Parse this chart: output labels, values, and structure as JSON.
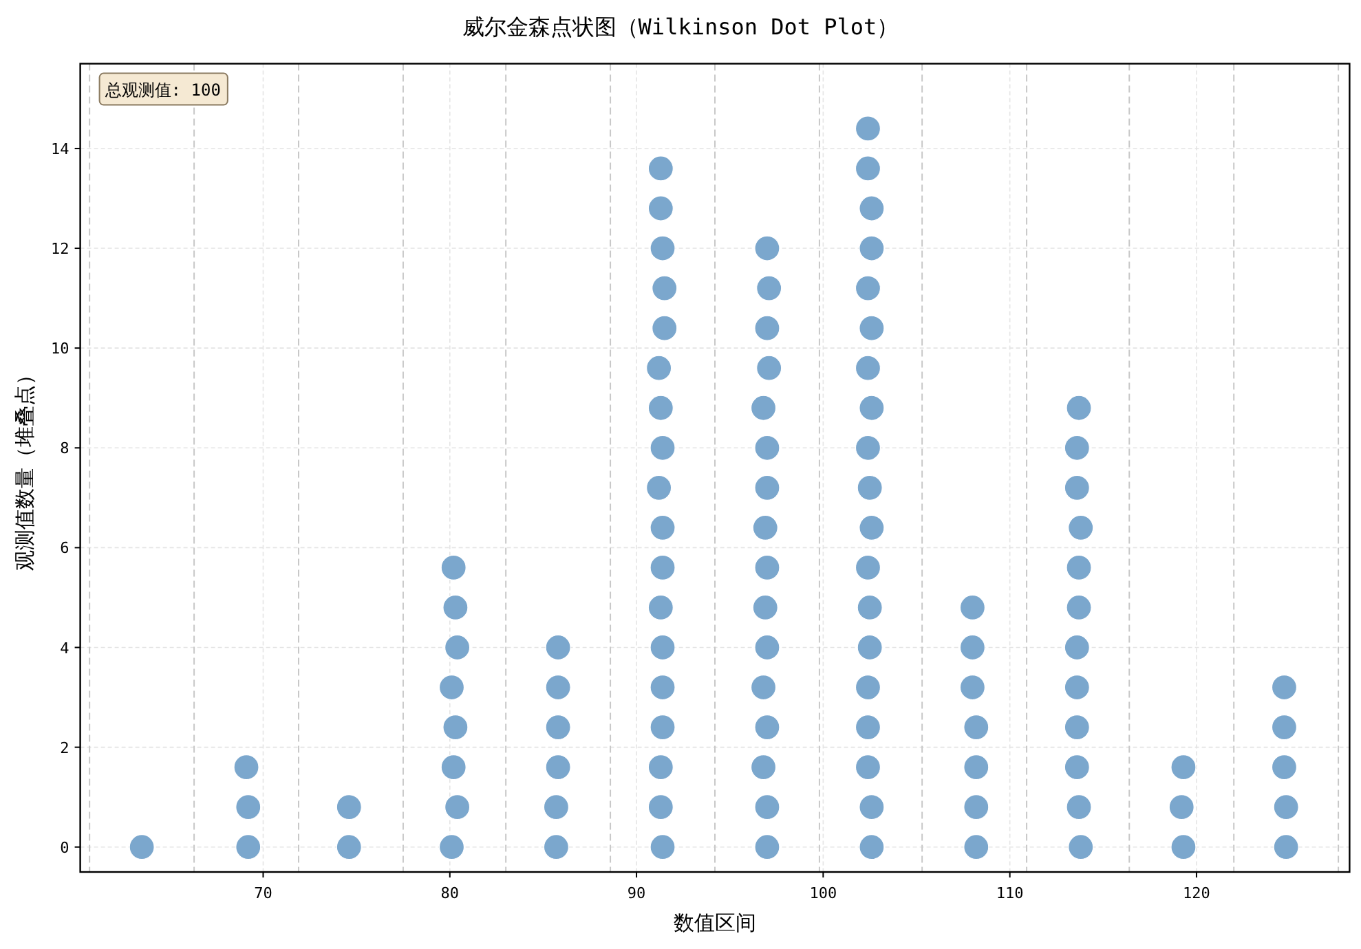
{
  "chart_data": {
    "type": "scatter",
    "title": "威尔金森点状图（Wilkinson Dot Plot）",
    "xlabel": "数值区间",
    "ylabel": "观测值数量（堆叠点）",
    "annotations": [
      "总观测值: 100"
    ],
    "x": [
      63.5,
      69.2,
      69.2,
      69.1,
      74.6,
      74.6,
      80.1,
      80.4,
      80.2,
      80.3,
      80.1,
      80.4,
      80.3,
      80.2,
      85.7,
      85.7,
      85.8,
      85.8,
      85.8,
      85.8,
      91.4,
      91.3,
      91.3,
      91.4,
      91.4,
      91.4,
      91.3,
      91.4,
      91.4,
      91.2,
      91.4,
      91.3,
      91.2,
      91.5,
      91.5,
      91.4,
      91.3,
      91.3,
      97.0,
      97.0,
      96.8,
      97.0,
      96.8,
      97.0,
      96.9,
      97.0,
      96.9,
      97.0,
      97.0,
      96.8,
      97.1,
      97.0,
      97.1,
      97.0,
      102.6,
      102.6,
      102.4,
      102.4,
      102.4,
      102.5,
      102.5,
      102.4,
      102.6,
      102.5,
      102.4,
      102.6,
      102.4,
      102.6,
      102.4,
      102.6,
      102.6,
      102.4,
      102.4,
      108.2,
      108.2,
      108.2,
      108.2,
      108.0,
      108.0,
      108.0,
      113.8,
      113.7,
      113.6,
      113.6,
      113.6,
      113.6,
      113.7,
      113.7,
      113.8,
      113.6,
      113.6,
      113.7,
      119.3,
      119.2,
      119.3,
      124.8,
      124.8,
      124.7,
      124.7,
      124.7
    ],
    "values": [
      0,
      0,
      0.8,
      1.6,
      0,
      0.8,
      0,
      0.8,
      1.6,
      2.4,
      3.2,
      4,
      4.8,
      5.6,
      0,
      0.8,
      1.6,
      2.4,
      3.2,
      4,
      0,
      0.8,
      1.6,
      2.4,
      3.2,
      4,
      4.8,
      5.6,
      6.4,
      7.2,
      8,
      8.8,
      9.6,
      10.4,
      11.2,
      12,
      12.8,
      13.6,
      0,
      0.8,
      1.6,
      2.4,
      3.2,
      4,
      4.8,
      5.6,
      6.4,
      7.2,
      8,
      8.8,
      9.6,
      10.4,
      11.2,
      12,
      0,
      0.8,
      1.6,
      2.4,
      3.2,
      4,
      4.8,
      5.6,
      6.4,
      7.2,
      8,
      8.8,
      9.6,
      10.4,
      11.2,
      12,
      12.8,
      13.6,
      14.4,
      0,
      0.8,
      1.6,
      2.4,
      3.2,
      4,
      4.8,
      0,
      0.8,
      1.6,
      2.4,
      3.2,
      4,
      4.8,
      5.6,
      6.4,
      7.2,
      8,
      8.8,
      0,
      0.8,
      1.6,
      0,
      0.8,
      1.6,
      2.4,
      3.2
    ],
    "color": "#7ba7cd",
    "marker": "circle",
    "xlim": [
      60.2,
      128.2
    ],
    "ylim": [
      -0.5,
      15.7
    ],
    "xticks": [
      70,
      80,
      90,
      100,
      110,
      120
    ],
    "yticks": [
      0,
      2,
      4,
      6,
      8,
      10,
      12,
      14
    ],
    "grid": true,
    "ref_lines": [
      {
        "axis": "x",
        "value": 60.7,
        "color": "#c8c8c8",
        "line_style": "dashed"
      },
      {
        "axis": "x",
        "value": 66.3,
        "color": "#c8c8c8",
        "line_style": "dashed"
      },
      {
        "axis": "x",
        "value": 71.9,
        "color": "#c8c8c8",
        "line_style": "dashed"
      },
      {
        "axis": "x",
        "value": 77.5,
        "color": "#c8c8c8",
        "line_style": "dashed"
      },
      {
        "axis": "x",
        "value": 83.0,
        "color": "#c8c8c8",
        "line_style": "dashed"
      },
      {
        "axis": "x",
        "value": 88.6,
        "color": "#c8c8c8",
        "line_style": "dashed"
      },
      {
        "axis": "x",
        "value": 94.2,
        "color": "#c8c8c8",
        "line_style": "dashed"
      },
      {
        "axis": "x",
        "value": 99.8,
        "color": "#c8c8c8",
        "line_style": "dashed"
      },
      {
        "axis": "x",
        "value": 105.3,
        "color": "#c8c8c8",
        "line_style": "dashed"
      },
      {
        "axis": "x",
        "value": 110.9,
        "color": "#c8c8c8",
        "line_style": "dashed"
      },
      {
        "axis": "x",
        "value": 116.4,
        "color": "#c8c8c8",
        "line_style": "dashed"
      },
      {
        "axis": "x",
        "value": 122.0,
        "color": "#c8c8c8",
        "line_style": "dashed"
      },
      {
        "axis": "x",
        "value": 127.6,
        "color": "#c8c8c8",
        "line_style": "dashed"
      }
    ]
  }
}
